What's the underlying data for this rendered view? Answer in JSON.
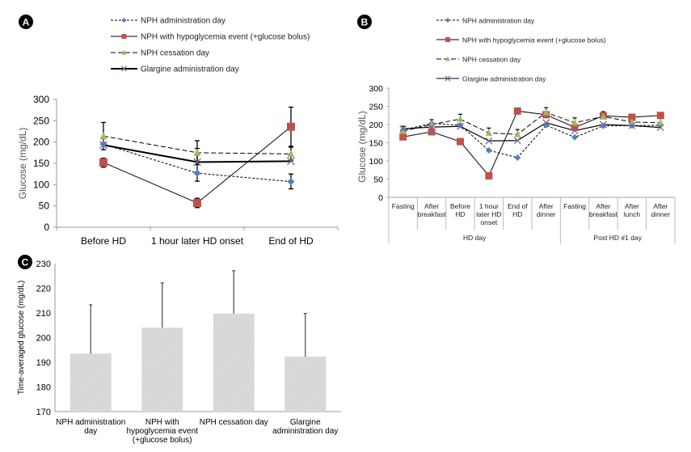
{
  "panels": {
    "A": {
      "letter": "A"
    },
    "B": {
      "letter": "B"
    },
    "C": {
      "letter": "C"
    }
  },
  "series_style": [
    {
      "name": "NPH administration day",
      "color": "#4f81bd",
      "marker": "diamond",
      "dash": "3,2",
      "width": 1
    },
    {
      "name": "NPH with hypoglycemia event (+glucose bolus)",
      "color": "#c0504d",
      "marker": "square",
      "dash": "",
      "width": 1
    },
    {
      "name": "NPH cessation day",
      "color": "#9bbb59",
      "marker": "triangle",
      "dash": "6,3",
      "width": 1.2
    },
    {
      "name": "Glargine administration day",
      "color": "#8064a2",
      "marker": "x",
      "dash": "",
      "width": 2
    }
  ],
  "chart_data": [
    {
      "id": "A",
      "type": "line",
      "title": "",
      "xlabel": "",
      "ylabel": "Glucose (mg/dL)",
      "ylim": [
        0,
        300
      ],
      "yticks": [
        0,
        50,
        100,
        150,
        200,
        250,
        300
      ],
      "categories": [
        "Before HD",
        "1 hour later HD onset",
        "End of HD"
      ],
      "legend": "top",
      "series": [
        {
          "name": "NPH administration day",
          "values": [
            195,
            127,
            107
          ],
          "err_high": [
            null,
            185,
            125
          ],
          "err_low": [
            null,
            108,
            90
          ]
        },
        {
          "name": "NPH with hypoglycemia event (+glucose bolus)",
          "values": [
            152,
            57,
            236
          ],
          "err_high": [
            162,
            68,
            282
          ],
          "err_low": [
            141,
            46,
            190
          ]
        },
        {
          "name": "NPH cessation day",
          "values": [
            214,
            175,
            172
          ],
          "err_high": [
            246,
            203,
            188
          ],
          "err_low": [
            182,
            147,
            156
          ]
        },
        {
          "name": "Glargine administration day",
          "values": [
            193,
            153,
            155
          ],
          "err_high": [
            null,
            null,
            null
          ],
          "err_low": [
            null,
            null,
            null
          ]
        }
      ]
    },
    {
      "id": "B",
      "type": "line",
      "title": "",
      "xlabel": "",
      "ylabel": "Glucose (mg/dL)",
      "ylim": [
        0,
        300
      ],
      "yticks": [
        0,
        50,
        100,
        150,
        200,
        250,
        300
      ],
      "categories": [
        "Fasting",
        "After breakfast",
        "Before HD",
        "1 hour later HD onset",
        "End of HD",
        "After dinner",
        "Fasting",
        "After breakfast",
        "After lunch",
        "After dinner"
      ],
      "category_lines": [
        [
          "Fasting"
        ],
        [
          "After",
          "breakfast"
        ],
        [
          "Before",
          "HD"
        ],
        [
          "1 hour",
          "later HD",
          "onset"
        ],
        [
          "End of",
          "HD"
        ],
        [
          "After",
          "dinner"
        ],
        [
          "Fasting"
        ],
        [
          "After",
          "breakfast"
        ],
        [
          "After",
          "lunch"
        ],
        [
          "After",
          "dinner"
        ]
      ],
      "groups": [
        {
          "label": "HD day",
          "span": 6
        },
        {
          "label": "Post HD #1 day",
          "span": 4
        }
      ],
      "legend": "top",
      "series": [
        {
          "name": "NPH administration day",
          "values": [
            185,
            203,
            198,
            129,
            109,
            198,
            165,
            196,
            197,
            198
          ]
        },
        {
          "name": "NPH with hypoglycemia event (+glucose bolus)",
          "values": [
            166,
            180,
            153,
            59,
            237,
            227,
            192,
            224,
            220,
            225
          ]
        },
        {
          "name": "NPH cessation day",
          "values": [
            182,
            200,
            215,
            177,
            173,
            233,
            205,
            222,
            207,
            205
          ]
        },
        {
          "name": "Glargine administration day",
          "values": [
            188,
            193,
            195,
            155,
            156,
            205,
            183,
            200,
            197,
            192
          ]
        }
      ]
    },
    {
      "id": "C",
      "type": "bar",
      "title": "",
      "xlabel": "",
      "ylabel": "Time-averaged glucose (mg/dL)",
      "ylim": [
        170,
        230
      ],
      "yticks": [
        170,
        180,
        190,
        200,
        210,
        220,
        230
      ],
      "categories": [
        "NPH administration day",
        "NPH with hypoglycemia event (+glucose bolus)",
        "NPH cessation day",
        "Glargine administration day"
      ],
      "category_lines": [
        [
          "NPH administration",
          "day"
        ],
        [
          "NPH with",
          "hypoglycemia event",
          "(+glucose bolus)"
        ],
        [
          "NPH cessation day"
        ],
        [
          "Glargine",
          "administration day"
        ]
      ],
      "values": [
        193.5,
        204.0,
        209.7,
        192.3
      ],
      "err_high": [
        213.3,
        222.2,
        227.1,
        209.8
      ],
      "bar_color": "#d9d9d9"
    }
  ]
}
